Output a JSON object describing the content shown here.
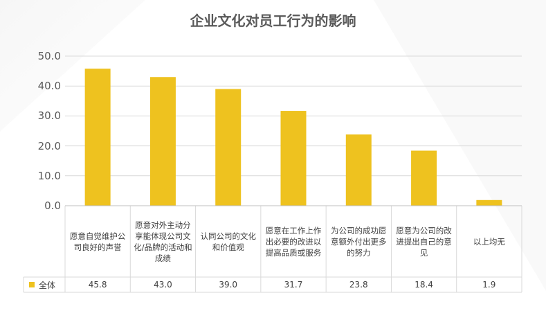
{
  "colors": {
    "bar": "#EEC21F",
    "axis_text": "#595959",
    "grid": "#D9D9D9"
  },
  "chart_data": {
    "type": "bar",
    "title": "企业文化对员工行为的影响",
    "categories": [
      "愿意自觉维护公司良好的声誉",
      "愿意对外主动分享能体现公司文化/品牌的活动和成绩",
      "认同公司的文化和价值观",
      "愿意在工作上作出必要的改进以提高品质或服务",
      "为公司的成功愿意额外付出更多的努力",
      "愿意为公司的改进提出自己的意见",
      "以上均无"
    ],
    "series": [
      {
        "name": "全体",
        "values": [
          45.8,
          43.0,
          39.0,
          31.7,
          23.8,
          18.4,
          1.9
        ]
      }
    ],
    "value_labels": [
      "45.8",
      "43.0",
      "39.0",
      "31.7",
      "23.8",
      "18.4",
      "1.9"
    ],
    "ylim": [
      0,
      50
    ],
    "yticks": [
      "0.0",
      "10.0",
      "20.0",
      "30.0",
      "40.0",
      "50.0"
    ],
    "xlabel": "",
    "ylabel": "",
    "grid": true,
    "legend": "data-table"
  }
}
